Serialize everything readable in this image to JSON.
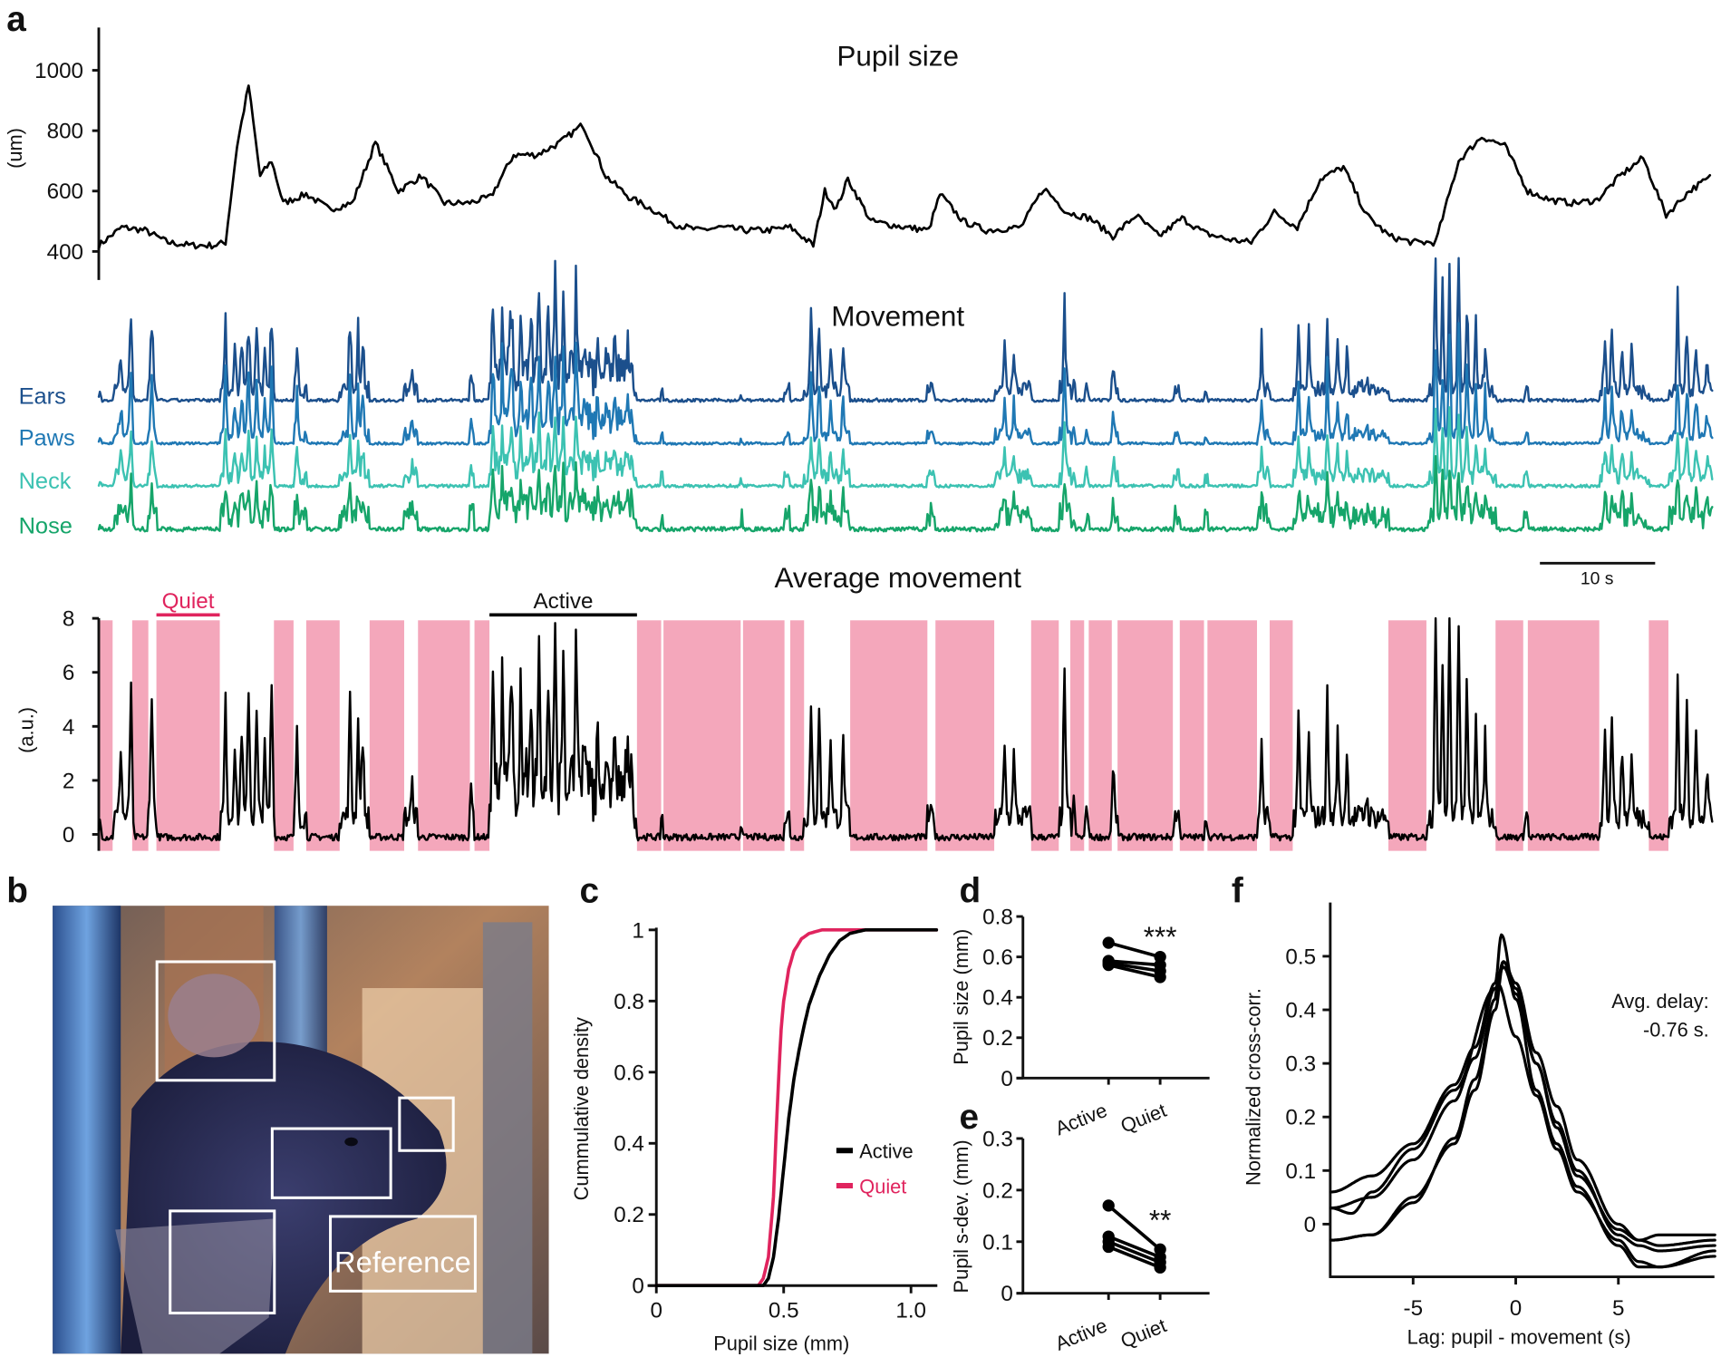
{
  "panel_labels": {
    "a": "a",
    "b": "b",
    "c": "c",
    "d": "d",
    "e": "e",
    "f": "f"
  },
  "chart_data": [
    {
      "id": "pupil",
      "type": "line",
      "title": "Pupil size",
      "ylabel": "(um)",
      "xlim": [
        0,
        140
      ],
      "ylim": [
        300,
        1140
      ],
      "yticks": [
        400,
        600,
        800,
        1000
      ],
      "ytick_labels": [
        "400",
        "600",
        "800",
        "1000"
      ],
      "color": "#000000",
      "x": [
        0,
        2,
        4,
        6,
        8,
        10,
        11,
        12,
        13,
        14,
        15,
        16,
        18,
        20,
        22,
        24,
        26,
        28,
        30,
        32,
        34,
        36,
        38,
        40,
        42,
        44,
        46,
        48,
        50,
        52,
        54,
        56,
        58,
        60,
        62,
        63,
        64,
        65,
        67,
        70,
        72,
        73,
        75,
        77,
        80,
        82,
        84,
        86,
        88,
        90,
        92,
        94,
        96,
        98,
        100,
        102,
        104,
        106,
        108,
        110,
        112,
        114,
        116,
        118,
        120,
        122,
        124,
        126,
        128,
        130,
        132,
        134,
        136,
        138,
        140
      ],
      "y": [
        420,
        480,
        470,
        430,
        420,
        420,
        430,
        750,
        950,
        650,
        700,
        560,
        590,
        540,
        560,
        760,
        600,
        650,
        560,
        560,
        580,
        720,
        720,
        760,
        820,
        650,
        580,
        540,
        490,
        470,
        480,
        470,
        470,
        480,
        420,
        600,
        540,
        640,
        500,
        480,
        470,
        590,
        500,
        470,
        480,
        610,
        530,
        510,
        450,
        520,
        450,
        510,
        460,
        440,
        430,
        530,
        480,
        640,
        680,
        520,
        450,
        430,
        430,
        700,
        780,
        750,
        600,
        570,
        560,
        570,
        650,
        710,
        520,
        600,
        650
      ]
    },
    {
      "id": "movement",
      "type": "line",
      "title": "Movement",
      "xlim": [
        0,
        140
      ],
      "series": [
        {
          "name": "Ears",
          "color": "#1b4f8c"
        },
        {
          "name": "Paws",
          "color": "#1f78b4"
        },
        {
          "name": "Neck",
          "color": "#3cc2b2"
        },
        {
          "name": "Nose",
          "color": "#16a56a"
        }
      ],
      "scale_bar_label": "10 s",
      "scale_bar_seconds": 10
    },
    {
      "id": "average_movement",
      "type": "line",
      "title": "Average movement",
      "ylabel": "(a.u.)",
      "xlim": [
        0,
        140
      ],
      "ylim": [
        -0.6,
        8
      ],
      "yticks": [
        0,
        2,
        4,
        6,
        8
      ],
      "ytick_labels": [
        "0",
        "2",
        "4",
        "6",
        "8"
      ],
      "quiet_color": "#f4a7bb",
      "quiet_intervals": [
        [
          0,
          1.2
        ],
        [
          2.9,
          4.3
        ],
        [
          5,
          10.5
        ],
        [
          15.2,
          16.9
        ],
        [
          18,
          20.9
        ],
        [
          23.5,
          26.5
        ],
        [
          27.7,
          32.2
        ],
        [
          32.6,
          33.9
        ],
        [
          46.7,
          48.8
        ],
        [
          49,
          55.7
        ],
        [
          55.9,
          59.5
        ],
        [
          60,
          61.2
        ],
        [
          65.2,
          71.9
        ],
        [
          72.6,
          77.7
        ],
        [
          80.9,
          83.3
        ],
        [
          84.3,
          85.5
        ],
        [
          85.9,
          87.9
        ],
        [
          88.4,
          93.2
        ],
        [
          93.8,
          95.9
        ],
        [
          96.2,
          100.5
        ],
        [
          101.6,
          103.6
        ],
        [
          111.9,
          115.2
        ],
        [
          121.2,
          123.6
        ],
        [
          124,
          130.2
        ],
        [
          134.5,
          136.2
        ]
      ],
      "peaks": [
        [
          0.1,
          0.6
        ],
        [
          1.9,
          2.6
        ],
        [
          2.8,
          5.1
        ],
        [
          4.6,
          4.8
        ],
        [
          11,
          4.2
        ],
        [
          11.8,
          2.8
        ],
        [
          12.4,
          3.3
        ],
        [
          13,
          4.9
        ],
        [
          13.7,
          3.8
        ],
        [
          14.4,
          2.5
        ],
        [
          15,
          5
        ],
        [
          17.2,
          3
        ],
        [
          21.8,
          4.3
        ],
        [
          22.5,
          3.5
        ],
        [
          22.9,
          3
        ],
        [
          27.2,
          1.1
        ],
        [
          32.3,
          0.8
        ],
        [
          34.2,
          3.5
        ],
        [
          35,
          3.5
        ],
        [
          35.8,
          4
        ],
        [
          36.6,
          3.9
        ],
        [
          37.5,
          3.3
        ],
        [
          38.2,
          4.8
        ],
        [
          39,
          3.6
        ],
        [
          39.6,
          5.5
        ],
        [
          40.3,
          5.2
        ],
        [
          41.4,
          5.3
        ],
        [
          42.2,
          1.9
        ],
        [
          43.3,
          2.5
        ],
        [
          44.7,
          1.7
        ],
        [
          46,
          1.2
        ],
        [
          61.8,
          3.7
        ],
        [
          62.5,
          4.1
        ],
        [
          63.5,
          3
        ],
        [
          64.6,
          2.8
        ],
        [
          78.6,
          2.5
        ],
        [
          79.4,
          2.3
        ],
        [
          83.8,
          5.3
        ],
        [
          84.6,
          1.5
        ],
        [
          88,
          2
        ],
        [
          100.9,
          2.5
        ],
        [
          104.1,
          3.5
        ],
        [
          105,
          2.9
        ],
        [
          106.6,
          4.5
        ],
        [
          107.5,
          3
        ],
        [
          108.3,
          2.3
        ],
        [
          110,
          0.8
        ],
        [
          116,
          8
        ],
        [
          116.6,
          6
        ],
        [
          117.2,
          8
        ],
        [
          118,
          7.4
        ],
        [
          118.7,
          5
        ],
        [
          119.5,
          4
        ],
        [
          120.3,
          3
        ],
        [
          130.7,
          3.5
        ],
        [
          131.3,
          4
        ],
        [
          132.2,
          2.5
        ],
        [
          133,
          2.2
        ],
        [
          137,
          5
        ],
        [
          137.8,
          4.6
        ],
        [
          138.6,
          3
        ],
        [
          139.6,
          1.6
        ]
      ],
      "annotations": {
        "quiet": {
          "label": "Quiet",
          "range": [
            5,
            10.5
          ],
          "color": "#e0245e"
        },
        "active": {
          "label": "Active",
          "range": [
            33.9,
            46.7
          ],
          "color": "#000000"
        }
      }
    },
    {
      "id": "roi_image",
      "type": "image",
      "roi_label": "Reference",
      "roi_count": 5
    },
    {
      "id": "cdf",
      "type": "line",
      "xlabel": "Pupil size (mm)",
      "ylabel": "Cummulative density",
      "xlim": [
        0,
        1.1
      ],
      "ylim": [
        0,
        1
      ],
      "xticks": [
        0,
        0.5,
        1.0
      ],
      "xtick_labels": [
        "0",
        "0.5",
        "1.0"
      ],
      "yticks": [
        0,
        0.2,
        0.4,
        0.6,
        0.8,
        1
      ],
      "ytick_labels": [
        "0",
        "0.2",
        "0.4",
        "0.6",
        "0.8",
        "1"
      ],
      "legend": "center-right",
      "series": [
        {
          "name": "Active",
          "color": "#000000",
          "x": [
            0,
            0.42,
            0.44,
            0.46,
            0.48,
            0.5,
            0.52,
            0.54,
            0.56,
            0.58,
            0.6,
            0.64,
            0.68,
            0.72,
            0.76,
            0.82,
            1.1
          ],
          "y": [
            0,
            0,
            0.02,
            0.08,
            0.19,
            0.33,
            0.47,
            0.58,
            0.66,
            0.73,
            0.79,
            0.87,
            0.93,
            0.97,
            0.99,
            1,
            1
          ]
        },
        {
          "name": "Quiet",
          "color": "#e0245e",
          "x": [
            0,
            0.4,
            0.42,
            0.44,
            0.46,
            0.47,
            0.48,
            0.49,
            0.5,
            0.52,
            0.54,
            0.57,
            0.6,
            0.65,
            0.7,
            1.1
          ],
          "y": [
            0,
            0,
            0.02,
            0.08,
            0.25,
            0.42,
            0.58,
            0.72,
            0.8,
            0.89,
            0.94,
            0.975,
            0.99,
            1,
            1,
            1
          ]
        }
      ]
    },
    {
      "id": "pupil_size_paired",
      "type": "scatter",
      "ylabel": "Pupil size (mm)",
      "categories": [
        "Active",
        "Quiet"
      ],
      "ylim": [
        0,
        0.8
      ],
      "yticks": [
        0,
        0.2,
        0.4,
        0.6,
        0.8
      ],
      "ytick_labels": [
        "0",
        "0.2",
        "0.4",
        "0.6",
        "0.8"
      ],
      "pairs": [
        [
          0.67,
          0.6
        ],
        [
          0.58,
          0.56
        ],
        [
          0.57,
          0.53
        ],
        [
          0.56,
          0.5
        ]
      ],
      "significance": "***"
    },
    {
      "id": "pupil_sdev_paired",
      "type": "scatter",
      "ylabel": "Pupil s-dev. (mm)",
      "categories": [
        "Active",
        "Quiet"
      ],
      "ylim": [
        0,
        0.3
      ],
      "yticks": [
        0,
        0.1,
        0.2,
        0.3
      ],
      "ytick_labels": [
        "0",
        "0.1",
        "0.2",
        "0.3"
      ],
      "pairs": [
        [
          0.17,
          0.085
        ],
        [
          0.11,
          0.07
        ],
        [
          0.1,
          0.06
        ],
        [
          0.09,
          0.05
        ]
      ],
      "significance": "**"
    },
    {
      "id": "cross_correlation",
      "type": "line",
      "xlabel": "Lag: pupil - movement (s)",
      "ylabel": "Normalized cross-corr.",
      "xlim": [
        -9,
        9.7
      ],
      "ylim": [
        -0.1,
        0.6
      ],
      "xticks": [
        -5,
        0,
        5
      ],
      "xtick_labels": [
        "-5",
        "0",
        "5"
      ],
      "yticks": [
        0,
        0.1,
        0.2,
        0.3,
        0.4,
        0.5
      ],
      "ytick_labels": [
        "0",
        "0.1",
        "0.2",
        "0.3",
        "0.4",
        "0.5"
      ],
      "annotation_line1": "Avg. delay:",
      "annotation_line2": "-0.76 s.",
      "series": [
        {
          "x": [
            -9,
            -7,
            -5,
            -3,
            -2,
            -1,
            -0.7,
            0,
            1,
            2,
            3,
            5,
            6,
            7,
            9.7
          ],
          "y": [
            0.06,
            0.09,
            0.15,
            0.26,
            0.33,
            0.45,
            0.54,
            0.42,
            0.25,
            0.15,
            0.07,
            -0.04,
            -0.08,
            -0.08,
            -0.06
          ]
        },
        {
          "x": [
            -9,
            -7,
            -5,
            -3,
            -2,
            -1,
            -0.6,
            0,
            1,
            2,
            3,
            5,
            6,
            7,
            9.7
          ],
          "y": [
            0.03,
            0.05,
            0.12,
            0.23,
            0.31,
            0.44,
            0.49,
            0.45,
            0.32,
            0.22,
            0.12,
            0.0,
            -0.03,
            -0.02,
            -0.02
          ]
        },
        {
          "x": [
            -9,
            -8,
            -7,
            -5,
            -3,
            -1,
            -0.6,
            0,
            1,
            2,
            3,
            5,
            6,
            7,
            9.7
          ],
          "y": [
            0.03,
            0.02,
            0.06,
            0.14,
            0.25,
            0.44,
            0.48,
            0.43,
            0.3,
            0.19,
            0.1,
            -0.02,
            -0.04,
            -0.05,
            -0.04
          ]
        },
        {
          "x": [
            -9,
            -7,
            -5,
            -3,
            -2,
            -1,
            -0.9,
            0,
            1,
            2,
            3,
            5,
            6,
            7,
            9.7
          ],
          "y": [
            -0.03,
            -0.02,
            0.04,
            0.16,
            0.27,
            0.42,
            0.45,
            0.35,
            0.24,
            0.14,
            0.06,
            -0.03,
            -0.07,
            -0.08,
            -0.05
          ]
        },
        {
          "x": [
            -9,
            -7,
            -5,
            -3,
            -2,
            -1,
            -0.6,
            0,
            1,
            2,
            3,
            5,
            6,
            7,
            9.7
          ],
          "y": [
            -0.03,
            -0.02,
            0.05,
            0.15,
            0.25,
            0.4,
            0.49,
            0.44,
            0.3,
            0.18,
            0.09,
            -0.01,
            -0.03,
            -0.04,
            -0.03
          ]
        }
      ]
    }
  ]
}
